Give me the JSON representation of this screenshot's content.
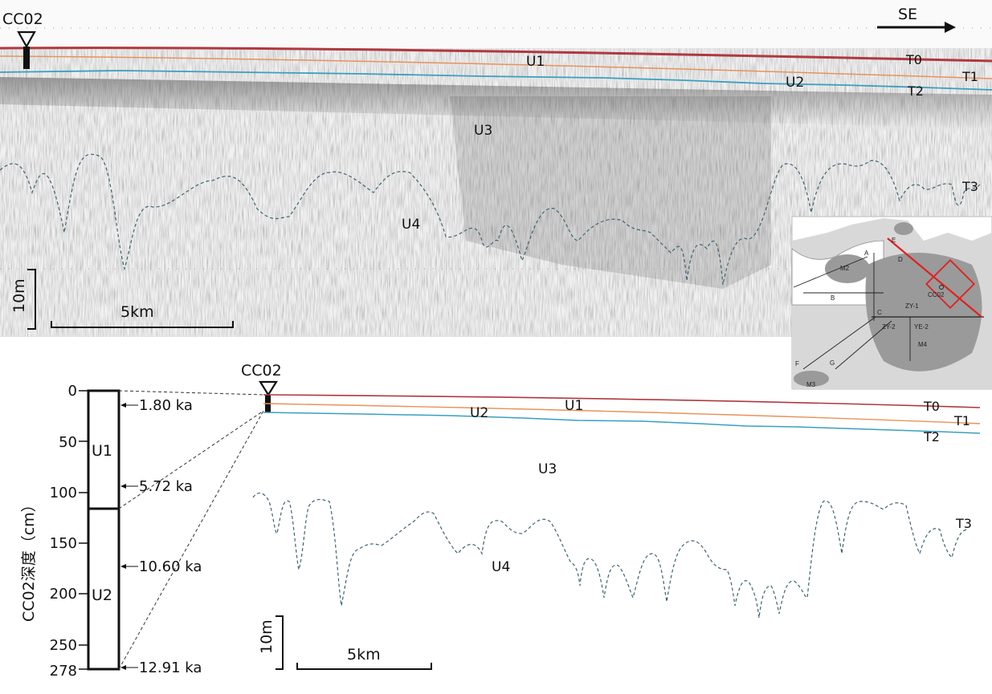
{
  "upper_profile": {
    "station": "CC02",
    "direction": "SE",
    "units": [
      "U1",
      "U2",
      "U3",
      "U4"
    ],
    "reflectors": [
      "T0",
      "T1",
      "T2",
      "T3"
    ],
    "scale_vertical": "10m",
    "scale_horizontal": "5km"
  },
  "lower_profile": {
    "station": "CC02",
    "units": [
      "U1",
      "U2",
      "U3",
      "U4"
    ],
    "reflectors": [
      "T0",
      "T1",
      "T2",
      "T3"
    ],
    "scale_vertical": "10m",
    "scale_horizontal": "5km"
  },
  "core_column": {
    "axis_label": "CC02深度（cm）",
    "ticks": [
      "0",
      "50",
      "100",
      "150",
      "200",
      "250",
      "278"
    ],
    "units": [
      "U1",
      "U2"
    ],
    "ages": [
      "1.80 ka",
      "5.72 ka",
      "10.60 ka",
      "12.91 ka"
    ],
    "age_depths_cm": [
      10,
      94,
      174,
      275
    ],
    "unit_boundary_cm": 120,
    "max_depth_cm": 278
  },
  "inset_map": {
    "labels": [
      "M2",
      "M3",
      "M4",
      "CC02",
      "ZY-1",
      "ZY-2",
      "YE-2",
      "A",
      "B",
      "C",
      "D",
      "E",
      "F",
      "G"
    ]
  },
  "colors": {
    "T0": "#b0383f",
    "T1": "#e8925a",
    "T2": "#3a9fc0",
    "T3": "#3d6470",
    "track": "#e02020"
  }
}
